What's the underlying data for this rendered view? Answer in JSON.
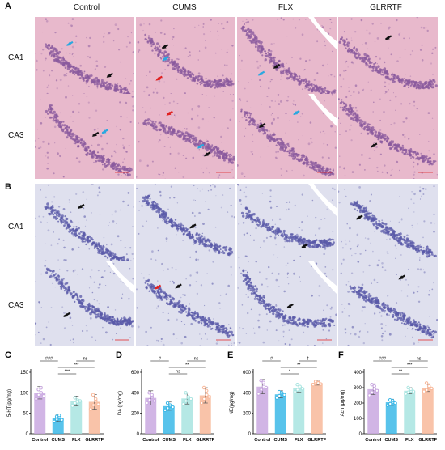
{
  "figure": {
    "section_a_label": "A",
    "section_b_label": "B",
    "groups": [
      "Control",
      "CUMS",
      "FLX",
      "GLRRTF"
    ],
    "a_rows": [
      "CA1",
      "CA3"
    ],
    "b_rows": [
      "CA1",
      "CA3"
    ],
    "colors": {
      "he_tissue": "#e8b9cc",
      "he_cells": "#8a5a9e",
      "nissl_tissue": "#dfe0ee",
      "nissl_cells": "#5a5aa8",
      "arrow_black": "#111111",
      "arrow_blue": "#2aa8e0",
      "arrow_red": "#e02020",
      "scale_bar": "#e02020"
    }
  },
  "chart_data": [
    {
      "panel": "C",
      "type": "bar",
      "ylabel": "5-HT(pg/mg)",
      "ylim": [
        0,
        150
      ],
      "yticks": [
        0,
        50,
        100,
        150
      ],
      "categories": [
        "Control",
        "CUMS",
        "FLX",
        "GLRRTF"
      ],
      "values": [
        100,
        38,
        80,
        78
      ],
      "errors": [
        15,
        8,
        12,
        18
      ],
      "points": [
        [
          85,
          95,
          100,
          108,
          112,
          92
        ],
        [
          30,
          35,
          40,
          42,
          45,
          34
        ],
        [
          68,
          75,
          82,
          88,
          78,
          80
        ],
        [
          60,
          70,
          80,
          95,
          85,
          72
        ]
      ],
      "colors": [
        "#c9a8e0",
        "#3bb8e8",
        "#a8e4e0",
        "#f8b89a"
      ],
      "significance": [
        {
          "from": 0,
          "to": 1,
          "label": "###"
        },
        {
          "from": 1,
          "to": 2,
          "label": "***"
        },
        {
          "from": 1,
          "to": 3,
          "label": "***"
        },
        {
          "from": 2,
          "to": 3,
          "label": "ns"
        }
      ]
    },
    {
      "panel": "D",
      "type": "bar",
      "ylabel": "DA (pg/mg)",
      "ylim": [
        0,
        600
      ],
      "yticks": [
        0,
        200,
        400,
        600
      ],
      "categories": [
        "Control",
        "CUMS",
        "FLX",
        "GLRRTF"
      ],
      "values": [
        350,
        270,
        345,
        375
      ],
      "errors": [
        70,
        40,
        55,
        75
      ],
      "points": [
        [
          300,
          330,
          360,
          400,
          380,
          320
        ],
        [
          230,
          250,
          270,
          300,
          280,
          260
        ],
        [
          290,
          320,
          350,
          400,
          360,
          340
        ],
        [
          300,
          340,
          380,
          450,
          420,
          360
        ]
      ],
      "colors": [
        "#c9a8e0",
        "#3bb8e8",
        "#a8e4e0",
        "#f8b89a"
      ],
      "significance": [
        {
          "from": 0,
          "to": 1,
          "label": "#"
        },
        {
          "from": 1,
          "to": 2,
          "label": "ns"
        },
        {
          "from": 1,
          "to": 3,
          "label": "**"
        },
        {
          "from": 2,
          "to": 3,
          "label": "ns"
        }
      ]
    },
    {
      "panel": "E",
      "type": "bar",
      "ylabel": "NE(pg/mg)",
      "ylim": [
        0,
        600
      ],
      "yticks": [
        0,
        200,
        400,
        600
      ],
      "categories": [
        "Control",
        "CUMS",
        "FLX",
        "GLRRTF"
      ],
      "values": [
        460,
        385,
        445,
        495
      ],
      "errors": [
        70,
        35,
        40,
        20
      ],
      "points": [
        [
          390,
          430,
          460,
          520,
          500,
          450
        ],
        [
          350,
          370,
          390,
          410,
          400,
          380
        ],
        [
          410,
          430,
          450,
          480,
          460,
          440
        ],
        [
          480,
          490,
          500,
          510,
          495,
          485
        ]
      ],
      "colors": [
        "#c9a8e0",
        "#3bb8e8",
        "#a8e4e0",
        "#f8b89a"
      ],
      "significance": [
        {
          "from": 0,
          "to": 1,
          "label": "#"
        },
        {
          "from": 1,
          "to": 2,
          "label": "*"
        },
        {
          "from": 1,
          "to": 3,
          "label": "**"
        },
        {
          "from": 2,
          "to": 3,
          "label": "†"
        }
      ]
    },
    {
      "panel": "F",
      "type": "bar",
      "ylabel": "Ach (μg/mg)",
      "ylim": [
        0,
        400
      ],
      "yticks": [
        0,
        100,
        200,
        300,
        400
      ],
      "categories": [
        "Control",
        "CUMS",
        "FLX",
        "GLRRTF"
      ],
      "values": [
        290,
        205,
        280,
        300
      ],
      "errors": [
        35,
        20,
        20,
        25
      ],
      "points": [
        [
          250,
          270,
          290,
          320,
          310,
          280
        ],
        [
          185,
          195,
          205,
          220,
          215,
          200
        ],
        [
          260,
          270,
          280,
          300,
          290,
          275
        ],
        [
          275,
          285,
          300,
          330,
          310,
          295
        ]
      ],
      "colors": [
        "#c9a8e0",
        "#3bb8e8",
        "#a8e4e0",
        "#f8b89a"
      ],
      "significance": [
        {
          "from": 0,
          "to": 1,
          "label": "###"
        },
        {
          "from": 1,
          "to": 2,
          "label": "**"
        },
        {
          "from": 1,
          "to": 3,
          "label": "***"
        },
        {
          "from": 2,
          "to": 3,
          "label": "ns"
        }
      ]
    }
  ]
}
